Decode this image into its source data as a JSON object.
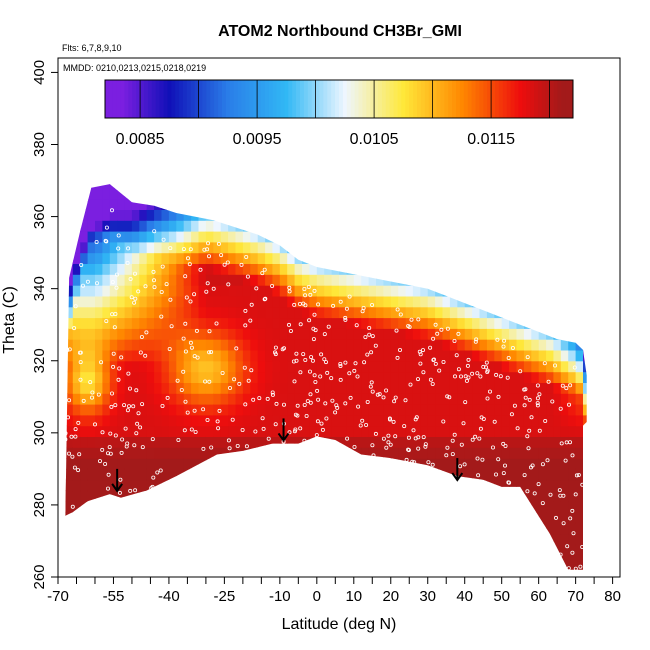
{
  "chart_data": {
    "type": "heatmap",
    "title": "ATOM2 Northbound CH3Br_GMI",
    "subtitle_flights": "Flts: 6,7,8,9,10",
    "subtitle_dates": "MMDD: 0210,0213,0215,0218,0219",
    "xlabel": "Latitude (deg N)",
    "ylabel": "Theta (C)",
    "xlim": [
      -70,
      82
    ],
    "ylim": [
      260,
      404
    ],
    "x_ticks_major": [
      -70,
      -55,
      -40,
      -25,
      -10,
      0,
      10,
      20,
      30,
      40,
      50,
      60,
      70,
      80
    ],
    "x_tick_labels": [
      "-70",
      "-55",
      "-40",
      "-25",
      "-10",
      "0",
      "10",
      "20",
      "30",
      "40",
      "50",
      "60",
      "70",
      "80"
    ],
    "x_ticks_minor": [
      -65,
      -60,
      -50,
      -45,
      -35,
      -30,
      -20,
      -15,
      -5,
      5,
      15,
      25,
      35,
      45,
      55,
      65,
      75
    ],
    "y_ticks": [
      260,
      280,
      300,
      320,
      340,
      360,
      380,
      400
    ],
    "y_tick_labels": [
      "260",
      "280",
      "300",
      "320",
      "340",
      "360",
      "380",
      "400"
    ],
    "colorbar": {
      "range": [
        0.0082,
        0.0122
      ],
      "tick_values": [
        0.0085,
        0.0095,
        0.0105,
        0.0115
      ],
      "tick_labels": [
        "0.0085",
        "0.0095",
        "0.0105",
        "0.0115"
      ],
      "boundaries": [
        0.0082,
        0.0085,
        0.009,
        0.0095,
        0.01,
        0.0105,
        0.011,
        0.0115,
        0.012,
        0.0122
      ],
      "colors": [
        "#7b1fe0",
        "#1010b8",
        "#2a7de8",
        "#31b8f5",
        "#eef6ff",
        "#ffe83a",
        "#ff8800",
        "#ee0d0d",
        "#a31a1a"
      ]
    },
    "upper_boundary": [
      [
        -67,
        343
      ],
      [
        -64,
        356
      ],
      [
        -61,
        368
      ],
      [
        -56,
        369
      ],
      [
        -50,
        364
      ],
      [
        -44,
        363
      ],
      [
        -38,
        361
      ],
      [
        -33,
        360
      ],
      [
        -28,
        359
      ],
      [
        -22,
        357
      ],
      [
        -16,
        355
      ],
      [
        -10,
        352
      ],
      [
        -5,
        348
      ],
      [
        0,
        346
      ],
      [
        5,
        345
      ],
      [
        10,
        344
      ],
      [
        15,
        343
      ],
      [
        20,
        342
      ],
      [
        25,
        341
      ],
      [
        30,
        340
      ],
      [
        35,
        338
      ],
      [
        40,
        336
      ],
      [
        45,
        334
      ],
      [
        50,
        332
      ],
      [
        55,
        330
      ],
      [
        60,
        328
      ],
      [
        65,
        326
      ],
      [
        70,
        325
      ],
      [
        72,
        323
      ],
      [
        73,
        316
      ],
      [
        73,
        303
      ],
      [
        72,
        302
      ]
    ],
    "lower_boundary": [
      [
        72,
        262
      ],
      [
        68,
        262
      ],
      [
        63,
        272
      ],
      [
        55,
        285
      ],
      [
        50,
        285
      ],
      [
        45,
        287
      ],
      [
        38,
        288
      ],
      [
        30,
        291
      ],
      [
        20,
        293
      ],
      [
        12,
        294
      ],
      [
        5,
        298
      ],
      [
        0,
        299
      ],
      [
        -5,
        297
      ],
      [
        -12,
        297
      ],
      [
        -20,
        295
      ],
      [
        -27,
        294
      ],
      [
        -38,
        288
      ],
      [
        -46,
        284
      ],
      [
        -53,
        282
      ],
      [
        -56,
        283
      ],
      [
        -62,
        281
      ],
      [
        -66,
        278
      ],
      [
        -68,
        277
      ]
    ],
    "highlight_bands": [
      {
        "lat": [
          -40,
          -20
        ],
        "theta": [
          300,
          330
        ],
        "value": 0.0112
      },
      {
        "lat": [
          -65,
          -30
        ],
        "theta": [
          330,
          360
        ],
        "value": 0.0098
      },
      {
        "lat": [
          -68,
          -55
        ],
        "theta": [
          340,
          370
        ],
        "value": 0.0088
      }
    ],
    "arrows_lat": [
      -54,
      -9,
      38
    ],
    "arrows_theta_top": [
      290,
      304,
      293
    ],
    "sample_marker": "white open circle"
  }
}
